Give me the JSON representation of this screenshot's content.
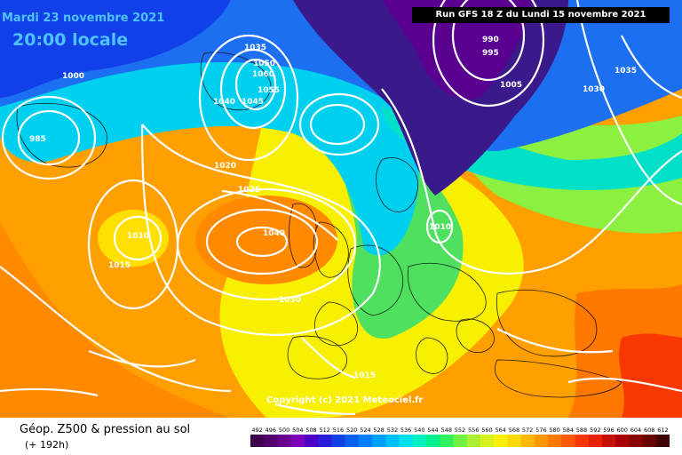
{
  "header": {
    "date_line": "Mardi 23 novembre 2021",
    "time_line": "20:00 locale",
    "run_info": "Run GFS 18 Z du Lundi 15 novembre 2021"
  },
  "copyright": "Copyright (c) 2021 Meteociel.fr",
  "legend": {
    "title": "Géop. Z500 & pression au sol",
    "subtitle": "(+ 192h)",
    "scale_values": [
      "492",
      "496",
      "500",
      "504",
      "508",
      "512",
      "516",
      "520",
      "524",
      "528",
      "532",
      "536",
      "540",
      "544",
      "548",
      "552",
      "556",
      "560",
      "564",
      "568",
      "572",
      "576",
      "580",
      "584",
      "588",
      "592",
      "596",
      "600",
      "604",
      "608",
      "612"
    ],
    "scale_colors": [
      "#3a004a",
      "#52006a",
      "#6a0090",
      "#7d00b8",
      "#4b00c8",
      "#2a1fd8",
      "#1240e8",
      "#0060f0",
      "#0080ff",
      "#00a0ff",
      "#00c0ff",
      "#00e0f0",
      "#00f0c0",
      "#00f090",
      "#30f060",
      "#70f040",
      "#a8f030",
      "#d8f020",
      "#f8f000",
      "#ffd800",
      "#ffb800",
      "#ff9800",
      "#ff7800",
      "#ff5800",
      "#f83800",
      "#e82000",
      "#c81000",
      "#a80000",
      "#880000",
      "#680000",
      "#400000"
    ]
  },
  "isobars": [
    {
      "label": "1035",
      "type": "high"
    },
    {
      "label": "1050",
      "type": "high"
    },
    {
      "label": "1060",
      "type": "high"
    },
    {
      "label": "1055",
      "type": "high"
    },
    {
      "label": "1045",
      "type": "high"
    },
    {
      "label": "1040",
      "type": "high"
    },
    {
      "label": "1040",
      "type": "high"
    },
    {
      "label": "1030",
      "type": "high"
    },
    {
      "label": "1025",
      "type": "high"
    },
    {
      "label": "1020",
      "type": "high"
    },
    {
      "label": "1015",
      "type": "high"
    },
    {
      "label": "1010",
      "type": "high"
    },
    {
      "label": "1005",
      "type": "low"
    },
    {
      "label": "1000",
      "type": "low"
    },
    {
      "label": "995",
      "type": "low"
    },
    {
      "label": "990",
      "type": "low"
    },
    {
      "label": "985",
      "type": "low"
    },
    {
      "label": "1010",
      "type": "low"
    },
    {
      "label": "1015",
      "type": "high"
    },
    {
      "label": "1035",
      "type": "high"
    },
    {
      "label": "1030",
      "type": "high"
    }
  ],
  "colors": {
    "deep_low": "#3a0060",
    "low": "#1c3fe0",
    "mid": "#00d0f0",
    "green": "#30e070",
    "yellow": "#f8f000",
    "orange": "#ffa000",
    "high": "#ff6a00"
  }
}
